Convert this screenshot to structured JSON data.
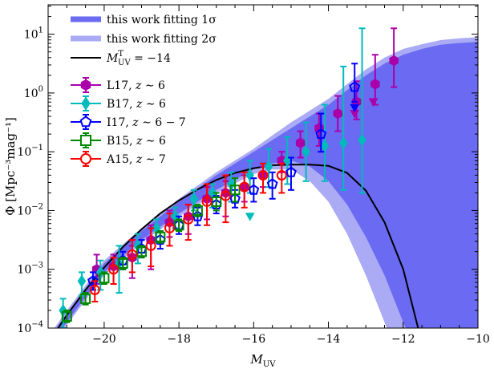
{
  "chart_data": {
    "type": "scatter",
    "xlabel": "M",
    "xlabel_sub": "UV",
    "ylabel": "Φ [Mpc⁻³mag⁻¹]",
    "xlim": [
      -21.5,
      -10
    ],
    "ylim_log10": [
      -4,
      1.5
    ],
    "y_scale": "log",
    "x_ticks": [
      -20,
      -18,
      -16,
      -14,
      -12,
      -10
    ],
    "x_tick_labels": [
      "−20",
      "−18",
      "−16",
      "−14",
      "−12",
      "−10"
    ],
    "y_ticks_log10": [
      -4,
      -3,
      -2,
      -1,
      0,
      1
    ],
    "y_tick_labels": [
      {
        "base": "10",
        "exp": "−4"
      },
      {
        "base": "10",
        "exp": "−3"
      },
      {
        "base": "10",
        "exp": "−2"
      },
      {
        "base": "10",
        "exp": "−1"
      },
      {
        "base": "10",
        "exp": "0"
      },
      {
        "base": "10",
        "exp": "1"
      }
    ],
    "legend_position": "top-left",
    "bands": [
      {
        "name": "this work fitting 1σ",
        "color": "#6a6af2",
        "x": [
          -21.5,
          -21,
          -20,
          -19,
          -18,
          -17,
          -16,
          -15.5,
          -15,
          -14.5,
          -14,
          -13.5,
          -13,
          -12.5,
          -12,
          -11.5,
          -11,
          -10.5,
          -10
        ],
        "low": [
          -4.35,
          -3.9,
          -3.05,
          -2.5,
          -2.05,
          -1.65,
          -1.3,
          -1.2,
          -1.15,
          -1.25,
          -1.5,
          -1.9,
          -2.45,
          -3.1,
          -3.9,
          -4.6,
          -5,
          -5,
          -5
        ],
        "high": [
          -4.2,
          -3.75,
          -2.9,
          -2.35,
          -1.85,
          -1.4,
          -1.0,
          -0.8,
          -0.6,
          -0.4,
          -0.2,
          0.05,
          0.3,
          0.5,
          0.65,
          0.75,
          0.82,
          0.85,
          0.87
        ]
      },
      {
        "name": "this work fitting 2σ",
        "color": "#aaaaf5",
        "x": [
          -21.5,
          -21,
          -20,
          -19,
          -18,
          -17,
          -16,
          -15.5,
          -15,
          -14.5,
          -14,
          -13.5,
          -13,
          -12.5,
          -12,
          -11.5,
          -11,
          -10.5,
          -10
        ],
        "low": [
          -4.4,
          -3.95,
          -3.1,
          -2.55,
          -2.1,
          -1.7,
          -1.38,
          -1.3,
          -1.3,
          -1.5,
          -1.85,
          -2.4,
          -3.1,
          -3.9,
          -4.8,
          -5,
          -5,
          -5,
          -5
        ],
        "high": [
          -4.15,
          -3.7,
          -2.85,
          -2.3,
          -1.8,
          -1.35,
          -0.95,
          -0.72,
          -0.5,
          -0.3,
          -0.1,
          0.15,
          0.4,
          0.6,
          0.75,
          0.83,
          0.9,
          0.93,
          0.95
        ]
      }
    ],
    "line": {
      "name": "M_UV^T = −14",
      "legend_math": {
        "base": "M",
        "sub": "UV",
        "sup": "T",
        "rest": " = −14"
      },
      "color": "#000000",
      "x": [
        -21.5,
        -21,
        -20.5,
        -20,
        -19.5,
        -19,
        -18.5,
        -18,
        -17.5,
        -17,
        -16.5,
        -16,
        -15.5,
        -15,
        -14.5,
        -14,
        -13.5,
        -13,
        -12.5,
        -12,
        -11.8,
        -11.6
      ],
      "log_y": [
        -4.25,
        -3.78,
        -3.35,
        -2.97,
        -2.62,
        -2.32,
        -2.05,
        -1.83,
        -1.64,
        -1.48,
        -1.36,
        -1.28,
        -1.23,
        -1.22,
        -1.22,
        -1.24,
        -1.36,
        -1.66,
        -2.2,
        -3.0,
        -3.5,
        -4.0
      ]
    },
    "series": [
      {
        "name": "L17, z ∼ 6",
        "legend_label": {
          "main": "L17, ",
          "z": "z",
          "rest": " ∼ 6"
        },
        "color": "#aa00aa",
        "marker": "hexagon",
        "filled": true,
        "x": [
          -20.2,
          -19.75,
          -19.25,
          -18.75,
          -18.25,
          -17.75,
          -17.25,
          -16.75,
          -16.25,
          -15.75,
          -15.25,
          -14.75,
          -14.25,
          -13.75,
          -13.25,
          -12.75,
          -12.25
        ],
        "log_y": [
          -3.0,
          -2.95,
          -2.8,
          -2.5,
          -2.2,
          -2.1,
          -1.8,
          -1.7,
          -1.6,
          -1.4,
          -1.15,
          -0.85,
          -0.6,
          -0.35,
          -0.15,
          0.15,
          0.55
        ],
        "err_low": [
          0.25,
          0.3,
          0.35,
          0.5,
          0.25,
          0.3,
          0.35,
          0.4,
          0.25,
          0.2,
          0.2,
          0.25,
          0.3,
          0.3,
          0.3,
          0.35,
          0.45
        ],
        "err_high": [
          0.25,
          0.2,
          0.2,
          0.25,
          0.2,
          0.2,
          0.2,
          0.2,
          0.2,
          0.15,
          0.15,
          0.2,
          0.25,
          0.3,
          0.35,
          0.5,
          0.55
        ]
      },
      {
        "name": "B17, z ∼ 6",
        "legend_label": {
          "main": "B17, ",
          "z": "z",
          "rest": " ∼ 6"
        },
        "color": "#00bbbb",
        "marker": "diamond",
        "filled": true,
        "x": [
          -21.1,
          -20.6,
          -20.1,
          -19.6,
          -19.1,
          -18.6,
          -18.1,
          -17.6,
          -17.1,
          -16.6,
          -16.1,
          -15.6,
          -15.1,
          -14.6,
          -14.1,
          -13.6,
          -13.1
        ],
        "log_y": [
          -3.7,
          -3.2,
          -3.05,
          -2.9,
          -2.6,
          -2.3,
          -2.1,
          -1.8,
          -1.7,
          -1.55,
          -1.4,
          -1.25,
          -1.15,
          -1.0,
          -0.9,
          -0.85,
          -0.8
        ],
        "err_low": [
          0.3,
          0.25,
          0.3,
          0.5,
          0.3,
          0.25,
          0.2,
          0.2,
          0.25,
          0.3,
          0.3,
          0.35,
          0.4,
          0.5,
          0.6,
          0.8,
          0.9
        ],
        "err_high": [
          0.2,
          0.15,
          0.2,
          0.3,
          0.2,
          0.15,
          0.15,
          0.15,
          0.15,
          0.2,
          0.25,
          0.3,
          0.4,
          0.5,
          0.7,
          1.3,
          1.9
        ]
      },
      {
        "name": "I17, z ∼ 6 − 7",
        "legend_label": {
          "main": "I17, ",
          "z": "z",
          "rest": " ∼ 6 − 7"
        },
        "color": "#0000ff",
        "marker": "pentagon",
        "filled": false,
        "x": [
          -20.3,
          -19.5,
          -19.0,
          -18.5,
          -18.0,
          -17.5,
          -17.0,
          -16.5,
          -16.0,
          -15.5,
          -15.0,
          -14.2,
          -13.3
        ],
        "log_y": [
          -3.2,
          -2.85,
          -2.65,
          -2.5,
          -2.25,
          -2.1,
          -1.9,
          -1.8,
          -1.65,
          -1.55,
          -1.35,
          -0.7,
          0.1
        ],
        "err_low": [
          0.15,
          0.15,
          0.15,
          0.15,
          0.15,
          0.15,
          0.15,
          0.15,
          0.2,
          0.25,
          0.3,
          0.3,
          0.25
        ],
        "err_high": [
          0.15,
          0.15,
          0.15,
          0.15,
          0.15,
          0.15,
          0.15,
          0.15,
          0.2,
          0.2,
          0.25,
          0.35,
          0.4
        ]
      },
      {
        "name": "B15, z ∼ 6",
        "legend_label": {
          "main": "B15, ",
          "z": "z",
          "rest": " ∼ 6"
        },
        "color": "#008800",
        "marker": "square",
        "filled": false,
        "x": [
          -21.0,
          -20.5,
          -20.0,
          -19.5,
          -19.0,
          -18.5,
          -18.0,
          -17.5,
          -17.0,
          -16.5
        ],
        "log_y": [
          -3.8,
          -3.5,
          -3.15,
          -2.9,
          -2.7,
          -2.45,
          -2.25,
          -2.0,
          -1.85,
          -1.65
        ],
        "err_low": [
          0.1,
          0.1,
          0.1,
          0.1,
          0.1,
          0.1,
          0.1,
          0.1,
          0.15,
          0.2
        ],
        "err_high": [
          0.1,
          0.1,
          0.1,
          0.1,
          0.1,
          0.1,
          0.1,
          0.1,
          0.15,
          0.2
        ]
      },
      {
        "name": "A15, z ∼ 7",
        "legend_label": {
          "main": "A15, ",
          "z": "z",
          "rest": " ∼ 7"
        },
        "color": "#ff0000",
        "marker": "circle",
        "filled": false,
        "x": [
          -20.25,
          -19.75,
          -19.25,
          -18.75,
          -18.25,
          -17.75,
          -17.25,
          -16.75,
          -16.25,
          -15.75,
          -15.25
        ],
        "log_y": [
          -3.35,
          -3.0,
          -2.75,
          -2.6,
          -2.3,
          -2.15,
          -1.85,
          -1.75,
          -1.6,
          -1.4,
          -1.4
        ],
        "err_low": [
          0.2,
          0.25,
          0.3,
          0.35,
          0.3,
          0.35,
          0.4,
          0.45,
          0.35,
          0.3,
          0.3
        ],
        "err_high": [
          0.15,
          0.2,
          0.25,
          0.3,
          0.25,
          0.25,
          0.3,
          0.35,
          0.25,
          0.2,
          0.2
        ]
      }
    ],
    "upper_limits": [
      {
        "series": "L17, z ∼ 6",
        "x": -13.3,
        "log_y": -0.35
      },
      {
        "series": "L17, z ∼ 6",
        "x": -12.8,
        "log_y": -0.15
      },
      {
        "series": "I17, z ∼ 6 − 7",
        "x": -13.3,
        "log_y": -0.25
      },
      {
        "series": "B17, z ∼ 6",
        "x": -16.1,
        "log_y": -2.1
      }
    ]
  }
}
